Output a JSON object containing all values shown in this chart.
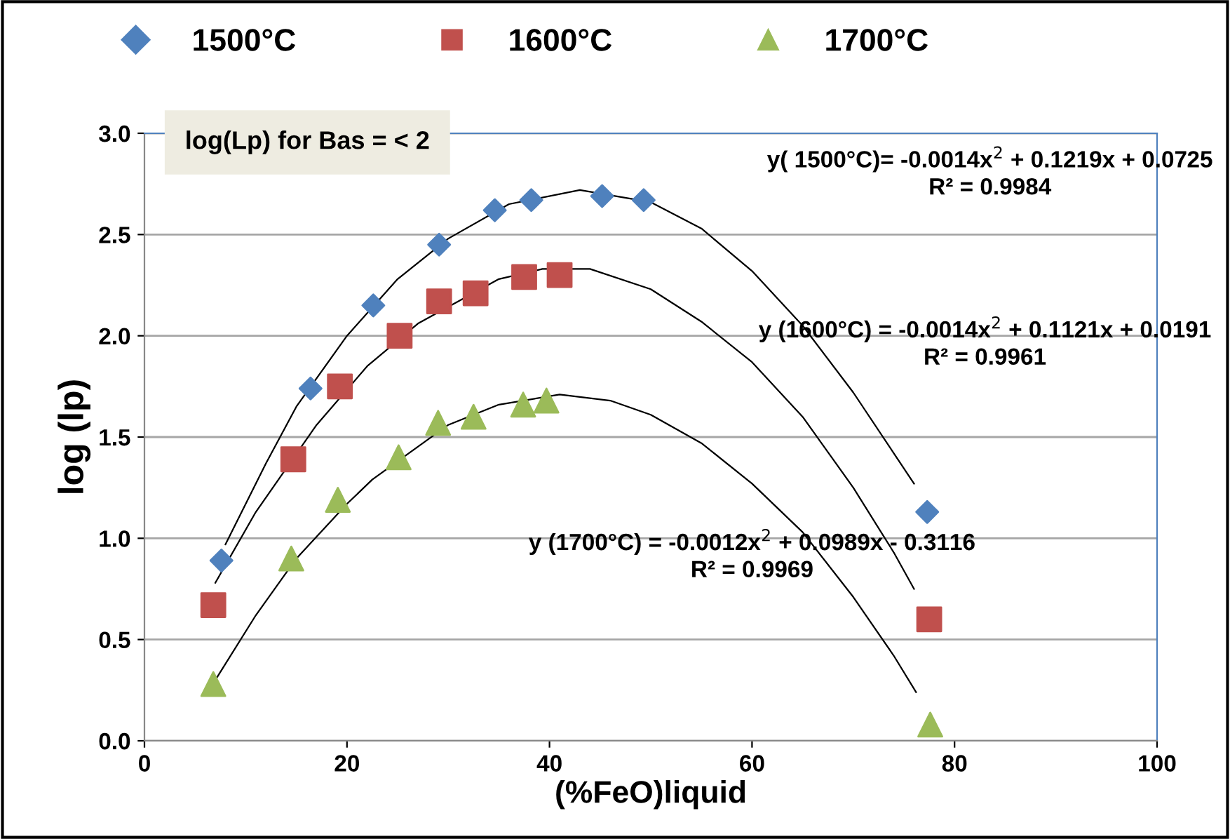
{
  "chart_data": {
    "type": "scatter",
    "xlabel": "(%FeO)liquid",
    "ylabel": "log (lp)",
    "xlim": [
      0,
      100
    ],
    "xticks": [
      0,
      20,
      40,
      60,
      80,
      100
    ],
    "ylim": [
      0.0,
      3.0
    ],
    "yticks": [
      {
        "value": 0.0,
        "label": "0.0"
      },
      {
        "value": 0.5,
        "label": "0.5"
      },
      {
        "value": 1.0,
        "label": "1.0"
      },
      {
        "value": 1.5,
        "label": "1.5"
      },
      {
        "value": 2.0,
        "label": "2.0"
      },
      {
        "value": 2.5,
        "label": "2.5"
      },
      {
        "value": 3.0,
        "label": "3.0"
      }
    ],
    "grid": "y",
    "legend": "top",
    "series": [
      {
        "name": "1500°C",
        "color": "#4f81bd",
        "marker": "diamond",
        "x": [
          7.6,
          16.4,
          22.6,
          29.1,
          34.6,
          38.2,
          45.2,
          49.3,
          77.3
        ],
        "values": [
          0.89,
          1.74,
          2.15,
          2.45,
          2.62,
          2.67,
          2.69,
          2.67,
          1.13
        ]
      },
      {
        "name": "1600°C",
        "color": "#c0504d",
        "marker": "square",
        "x": [
          6.8,
          14.7,
          19.3,
          25.2,
          29.1,
          32.7,
          37.5,
          41.0,
          77.5
        ],
        "values": [
          0.67,
          1.39,
          1.75,
          2.0,
          2.17,
          2.21,
          2.29,
          2.3,
          0.6
        ]
      },
      {
        "name": "1700°C",
        "color": "#9bbb59",
        "marker": "triangle",
        "x": [
          6.8,
          14.5,
          19.1,
          25.1,
          29.0,
          32.5,
          37.4,
          39.7,
          77.6
        ],
        "values": [
          0.28,
          0.9,
          1.19,
          1.4,
          1.57,
          1.6,
          1.66,
          1.68,
          0.08
        ]
      },
      {
        "type": "line",
        "color": "#000000",
        "x": [
          8,
          12,
          15,
          20,
          25,
          30,
          36,
          43,
          50,
          55,
          60,
          65,
          70,
          74,
          76
        ],
        "values": [
          0.97,
          1.37,
          1.65,
          2.0,
          2.28,
          2.48,
          2.65,
          2.72,
          2.66,
          2.53,
          2.32,
          2.05,
          1.72,
          1.42,
          1.27
        ]
      },
      {
        "type": "line",
        "color": "#000000",
        "x": [
          7,
          11,
          17,
          22,
          27,
          35,
          39.3,
          44,
          50,
          55,
          60,
          65,
          70,
          74,
          76
        ],
        "values": [
          0.78,
          1.13,
          1.56,
          1.85,
          2.06,
          2.28,
          2.33,
          2.33,
          2.23,
          2.07,
          1.87,
          1.6,
          1.25,
          0.93,
          0.75
        ]
      },
      {
        "type": "line",
        "color": "#000000",
        "x": [
          7,
          11,
          15,
          20,
          22.5,
          30,
          35,
          41,
          46,
          50,
          55,
          60,
          65,
          70,
          74,
          76.2
        ],
        "values": [
          0.3,
          0.62,
          0.9,
          1.17,
          1.29,
          1.56,
          1.66,
          1.71,
          1.68,
          1.61,
          1.47,
          1.27,
          1.03,
          0.71,
          0.42,
          0.24
        ]
      }
    ],
    "annotations": [
      "log(Lp) for Bas = < 2",
      "y( 1500°C)= -0.0014x$^{2}$ + 0.1219x + 0.0725\nR² = 0.9984",
      "y (1600°C) = -0.0014x$^{2}$ + 0.1121x + 0.0191\nR² = 0.9961",
      "y (1700°C) = -0.0012x$^{2}$ + 0.0989x - 0.3116\nR² = 0.9969"
    ]
  }
}
